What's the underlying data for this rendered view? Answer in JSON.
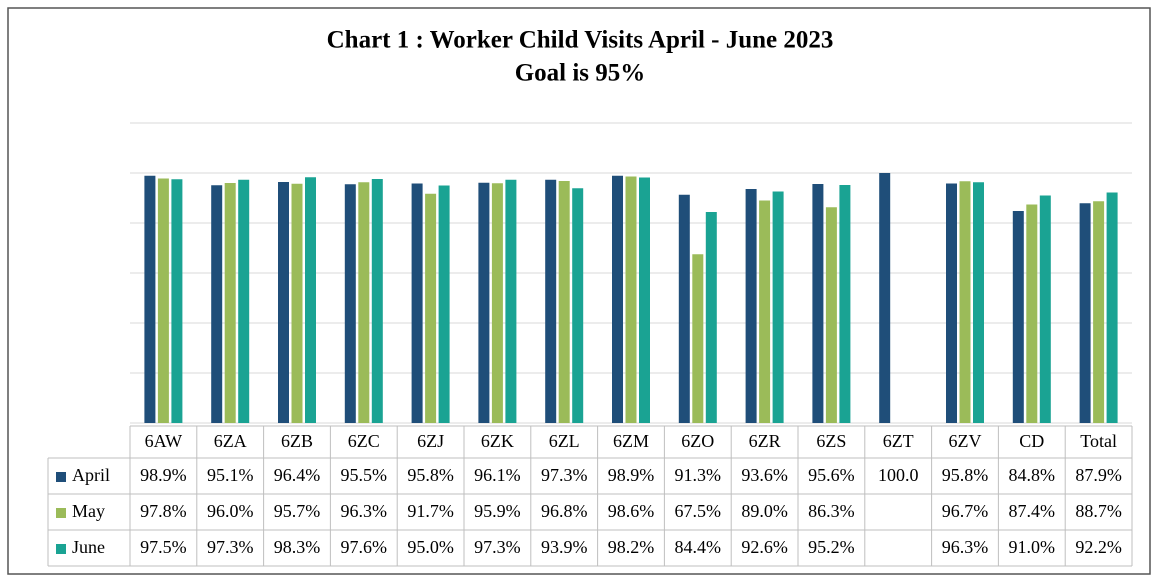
{
  "chart_data": {
    "type": "bar",
    "title": "Chart 1 : Worker Child Visits April - June 2023",
    "subtitle": "Goal is 95%",
    "categories": [
      "6AW",
      "6ZA",
      "6ZB",
      "6ZC",
      "6ZJ",
      "6ZK",
      "6ZL",
      "6ZM",
      "6ZO",
      "6ZR",
      "6ZS",
      "6ZT",
      "6ZV",
      "CD",
      "Total"
    ],
    "series": [
      {
        "name": "April",
        "color": "#1f4e79",
        "values": [
          98.9,
          95.1,
          96.4,
          95.5,
          95.8,
          96.1,
          97.3,
          98.9,
          91.3,
          93.6,
          95.6,
          100.0,
          95.8,
          84.8,
          87.9
        ],
        "value_labels": [
          "98.9%",
          "95.1%",
          "96.4%",
          "95.5%",
          "95.8%",
          "96.1%",
          "97.3%",
          "98.9%",
          "91.3%",
          "93.6%",
          "95.6%",
          "100.0",
          "95.8%",
          "84.8%",
          "87.9%"
        ]
      },
      {
        "name": "May",
        "color": "#9bbb59",
        "values": [
          97.8,
          96.0,
          95.7,
          96.3,
          91.7,
          95.9,
          96.8,
          98.6,
          67.5,
          89.0,
          86.3,
          null,
          96.7,
          87.4,
          88.7
        ],
        "value_labels": [
          "97.8%",
          "96.0%",
          "95.7%",
          "96.3%",
          "91.7%",
          "95.9%",
          "96.8%",
          "98.6%",
          "67.5%",
          "89.0%",
          "86.3%",
          null,
          "96.7%",
          "87.4%",
          "88.7%"
        ]
      },
      {
        "name": "June",
        "color": "#1aa393",
        "values": [
          97.5,
          97.3,
          98.3,
          97.6,
          95.0,
          97.3,
          93.9,
          98.2,
          84.4,
          92.6,
          95.2,
          null,
          96.3,
          91.0,
          92.2
        ],
        "value_labels": [
          "97.5%",
          "97.3%",
          "98.3%",
          "97.6%",
          "95.0%",
          "97.3%",
          "93.9%",
          "98.2%",
          "84.4%",
          "92.6%",
          "95.2%",
          null,
          "96.3%",
          "91.0%",
          "92.2%"
        ]
      }
    ],
    "ylim": [
      0,
      120
    ],
    "yticks": [
      0,
      20,
      40,
      60,
      80,
      100,
      120
    ],
    "grid": true
  }
}
